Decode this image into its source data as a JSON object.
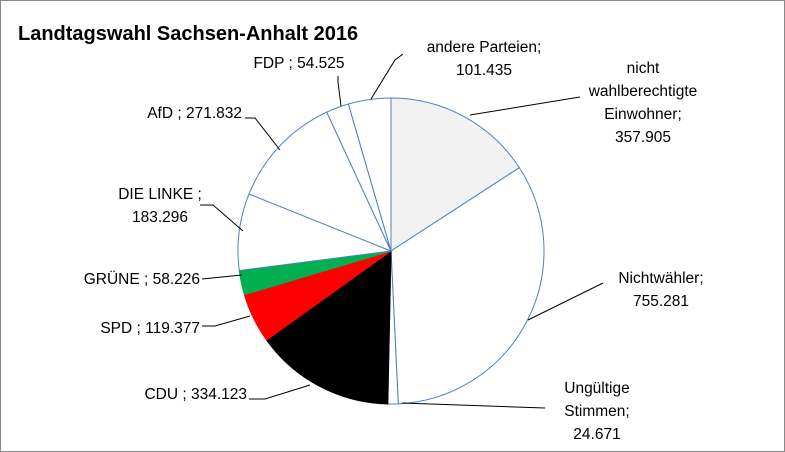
{
  "chart_data": {
    "type": "pie",
    "title": "Landtagswahl Sachsen-Anhalt  2016",
    "slices": [
      {
        "name": "nicht wahlberechtigte Einwohner",
        "value": 357905,
        "value_label": "357.905",
        "label_lines": [
          "nicht",
          "wahlberechtigte",
          "Einwohner;",
          "357.905"
        ],
        "color": "#f2f2f2",
        "outline": "#4f81bd"
      },
      {
        "name": "Nichtwähler",
        "value": 755281,
        "value_label": "755.281",
        "label_lines": [
          "Nichtwähler;",
          "755.281"
        ],
        "color": "#ffffff",
        "outline": "#4f81bd"
      },
      {
        "name": "Ungültige Stimmen",
        "value": 24671,
        "value_label": "24.671",
        "label_lines": [
          "Ungültige",
          "Stimmen;",
          "24.671"
        ],
        "color": "#ffffff",
        "outline": "#4f81bd"
      },
      {
        "name": "CDU",
        "value": 334123,
        "value_label": "334.123",
        "label_lines": [
          "CDU ; 334.123"
        ],
        "color": "#000000",
        "outline": "#000000"
      },
      {
        "name": "SPD",
        "value": 119377,
        "value_label": "119.377",
        "label_lines": [
          "SPD ; 119.377"
        ],
        "color": "#ff0000",
        "outline": "#ff0000"
      },
      {
        "name": "GRÜNE",
        "value": 58226,
        "value_label": "58.226",
        "label_lines": [
          "GRÜNE ; 58.226"
        ],
        "color": "#00b050",
        "outline": "#00b050"
      },
      {
        "name": "DIE LINKE",
        "value": 183296,
        "value_label": "183.296",
        "label_lines": [
          "DIE LINKE ;",
          "183.296"
        ],
        "color": "#ffffff",
        "outline": "#4f81bd"
      },
      {
        "name": "AfD",
        "value": 271832,
        "value_label": "271.832",
        "label_lines": [
          "AfD ; 271.832"
        ],
        "color": "#ffffff",
        "outline": "#4f81bd"
      },
      {
        "name": "FDP",
        "value": 54525,
        "value_label": "54.525",
        "label_lines": [
          "FDP ; 54.525"
        ],
        "color": "#ffffff",
        "outline": "#4f81bd"
      },
      {
        "name": "andere Parteien",
        "value": 101435,
        "value_label": "101.435",
        "label_lines": [
          "andere Parteien;",
          "101.435"
        ],
        "color": "#ffffff",
        "outline": "#4f81bd"
      }
    ],
    "start": "12 o'clock",
    "direction": "clockwise",
    "legend": "none"
  }
}
